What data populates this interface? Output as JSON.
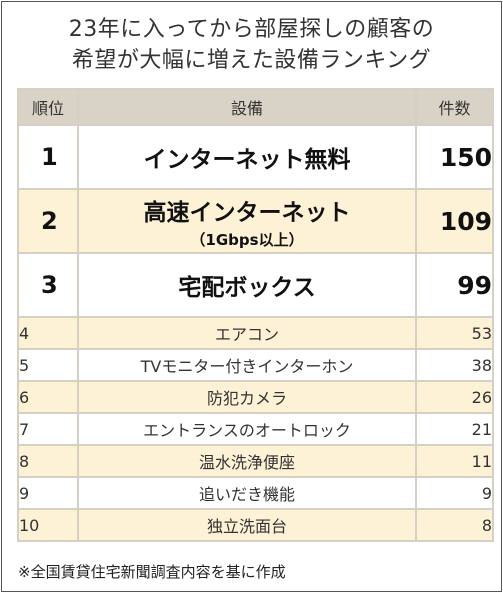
{
  "title_line1": "23年に入ってから部屋探しの顧客の",
  "title_line2": "希望が大幅に増えた設備ランキング",
  "headers": {
    "rank": "順位",
    "item": "設備",
    "count": "件数"
  },
  "rows": [
    {
      "rank": "1",
      "item": "インターネット無料",
      "sub": "",
      "count": "150"
    },
    {
      "rank": "2",
      "item": "高速インターネット",
      "sub": "（1Gbps以上）",
      "count": "109"
    },
    {
      "rank": "3",
      "item": "宅配ボックス",
      "sub": "",
      "count": "99"
    },
    {
      "rank": "4",
      "item": "エアコン",
      "sub": "",
      "count": "53"
    },
    {
      "rank": "5",
      "item": "TVモニター付きインターホン",
      "sub": "",
      "count": "38"
    },
    {
      "rank": "6",
      "item": "防犯カメラ",
      "sub": "",
      "count": "26"
    },
    {
      "rank": "7",
      "item": "エントランスのオートロック",
      "sub": "",
      "count": "21"
    },
    {
      "rank": "8",
      "item": "温水洗浄便座",
      "sub": "",
      "count": "11"
    },
    {
      "rank": "9",
      "item": "追いだき機能",
      "sub": "",
      "count": "9"
    },
    {
      "rank": "10",
      "item": "独立洗面台",
      "sub": "",
      "count": "8"
    }
  ],
  "note": "※全国賃貸住宅新聞調査内容を基に作成",
  "colors": {
    "header_bg": "#d9d2c6",
    "stripe_bg": "#fdf1d6",
    "border": "#d6d0c4"
  },
  "chart_data": {
    "type": "table",
    "columns": [
      "順位",
      "設備",
      "件数"
    ],
    "categories": [
      "インターネット無料",
      "高速インターネット（1Gbps以上）",
      "宅配ボックス",
      "エアコン",
      "TVモニター付きインターホン",
      "防犯カメラ",
      "エントランスのオートロック",
      "温水洗浄便座",
      "追いだき機能",
      "独立洗面台"
    ],
    "values": [
      150,
      109,
      99,
      53,
      38,
      26,
      21,
      11,
      9,
      8
    ]
  }
}
